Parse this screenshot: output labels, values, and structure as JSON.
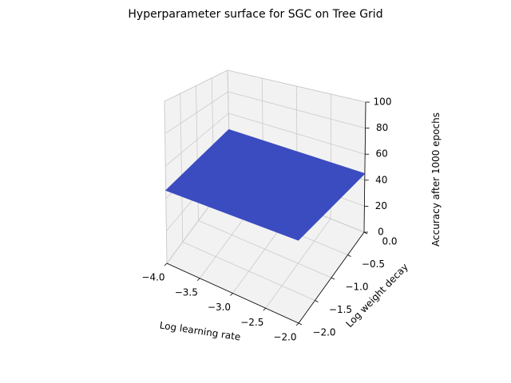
{
  "chart_data": {
    "type": "surface",
    "title": "Hyperparameter surface for SGC on Tree Grid",
    "xlabel": "Log learning rate",
    "ylabel": "Log weight decay",
    "zlabel": "Accuracy after 1000 epochs",
    "xlim": [
      -4.0,
      -2.0
    ],
    "ylim": [
      -2.0,
      0.0
    ],
    "zlim": [
      0,
      100
    ],
    "x_ticks": [
      -4.0,
      -3.5,
      -3.0,
      -2.5,
      -2.0
    ],
    "y_ticks": [
      -2.0,
      -1.5,
      -1.0,
      -0.5,
      0.0
    ],
    "z_ticks": [
      0,
      20,
      40,
      60,
      80,
      100
    ],
    "x_tick_labels": [
      "−4.0",
      "−3.5",
      "−3.0",
      "−2.5",
      "−2.0"
    ],
    "y_tick_labels": [
      "−2.0",
      "−1.5",
      "−1.0",
      "−0.5",
      "0.0"
    ],
    "z_tick_labels": [
      "0",
      "20",
      "40",
      "60",
      "80",
      "100"
    ],
    "surface": {
      "x": [
        -4.0,
        -2.0
      ],
      "y": [
        -2.0,
        0.0
      ],
      "z": [
        [
          45,
          45
        ],
        [
          45,
          45
        ]
      ]
    },
    "grid": true,
    "colors": {
      "surface": "#3b4cc0",
      "pane": "#f2f2f2",
      "pane_edge": "#cccccc",
      "grid": "#cbcbcb"
    }
  }
}
